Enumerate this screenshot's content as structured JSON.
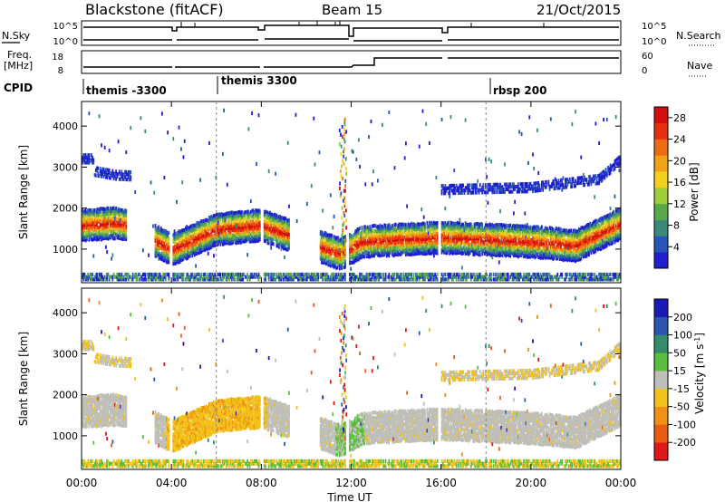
{
  "header": {
    "station": "Blackstone (fitACF)",
    "beam": "Beam 15",
    "date": "21/Oct/2015"
  },
  "left_labels": {
    "nsky": "N.Sky",
    "freq_line1": "Freq.",
    "freq_line2": "[MHz]",
    "cpid": "CPID"
  },
  "right_labels": {
    "nsearch": "N.Search",
    "nave": "Nave"
  },
  "nsky_ticks": [
    "10^5",
    "10^0"
  ],
  "nsearch_ticks": [
    "10^5",
    "10^0"
  ],
  "freq_ticks": [
    "18",
    "8"
  ],
  "nave_ticks": [
    "60",
    "0"
  ],
  "cpid_labels": [
    "themis -3300",
    "themis 3300",
    "rbsp 200"
  ],
  "x_axis": {
    "label": "Time UT",
    "ticks": [
      "00:00",
      "04:00",
      "08:00",
      "12:00",
      "16:00",
      "20:00",
      "00:00"
    ]
  },
  "y_axis": {
    "label": "Slant Range [km]",
    "ticks": [
      "1000",
      "2000",
      "3000",
      "4000"
    ]
  },
  "power_colorbar": {
    "label": "Power [dB]",
    "ticks": [
      "4",
      "8",
      "12",
      "16",
      "20",
      "24",
      "28"
    ],
    "colors": [
      "#1f1fd0",
      "#2a55b8",
      "#3a8a7a",
      "#59a84a",
      "#9fcc3a",
      "#f2d21c",
      "#f2a215",
      "#ef6b12",
      "#e53010",
      "#d40c0c"
    ]
  },
  "velocity_colorbar": {
    "label": "Velocity [m s^-1]",
    "ticks": [
      "200",
      "100",
      "50",
      "15",
      "-15",
      "-50",
      "-100",
      "-200"
    ],
    "colors": [
      "#1a1ab8",
      "#2d56b0",
      "#358c6a",
      "#58bf3c",
      "#bfbfb8",
      "#f2c21a",
      "#f09014",
      "#ea5a12",
      "#e01818"
    ]
  },
  "chart_data": [
    {
      "type": "heatmap",
      "title": "Power",
      "xlabel": "Time UT",
      "ylabel": "Slant Range [km]",
      "xlim_hours": [
        0,
        24
      ],
      "ylim_km": [
        180,
        4600
      ],
      "zlabel": "Power [dB]",
      "zlim": [
        0,
        30
      ],
      "main_band_center_km": [
        [
          0,
          1600
        ],
        [
          1.5,
          1650
        ],
        [
          2,
          1600
        ],
        [
          4,
          1000
        ],
        [
          6,
          1500
        ],
        [
          8,
          1600
        ],
        [
          11.5,
          900
        ],
        [
          12.5,
          1200
        ],
        [
          16,
          1300
        ],
        [
          20,
          1200
        ],
        [
          22,
          1100
        ],
        [
          24,
          1650
        ]
      ],
      "upper_band_center_km": [
        [
          0.5,
          2900
        ],
        [
          1.5,
          2800
        ],
        [
          16,
          2450
        ],
        [
          20,
          2500
        ],
        [
          23,
          2700
        ],
        [
          24,
          3200
        ]
      ]
    },
    {
      "type": "heatmap",
      "title": "Velocity",
      "xlabel": "Time UT",
      "ylabel": "Slant Range [km]",
      "xlim_hours": [
        0,
        24
      ],
      "ylim_km": [
        180,
        4600
      ],
      "zlabel": "Velocity [m s^-1]",
      "zlim": [
        -200,
        200
      ]
    }
  ]
}
